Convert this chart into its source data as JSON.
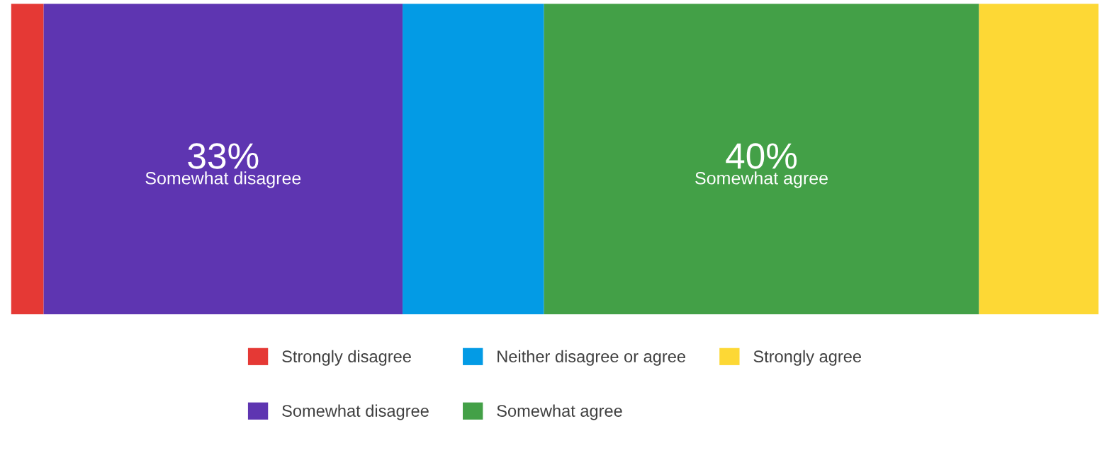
{
  "chart_data": {
    "type": "bar",
    "orientation": "horizontal",
    "stacked": true,
    "categories": [
      null
    ],
    "legend": "bottom",
    "series": [
      {
        "name": "Strongly disagree",
        "color": "#e53935",
        "values": [
          3
        ],
        "value_labels": [
          null
        ]
      },
      {
        "name": "Somewhat disagree",
        "color": "#5e35b1",
        "values": [
          33
        ],
        "value_labels": [
          "33%"
        ]
      },
      {
        "name": "Neither disagree or agree",
        "color": "#039be5",
        "values": [
          13
        ],
        "value_labels": [
          null
        ]
      },
      {
        "name": "Somewhat agree",
        "color": "#43a047",
        "values": [
          40
        ],
        "value_labels": [
          "40%"
        ]
      },
      {
        "name": "Strongly agree",
        "color": "#fdd835",
        "values": [
          11
        ],
        "value_labels": [
          null
        ]
      }
    ]
  }
}
